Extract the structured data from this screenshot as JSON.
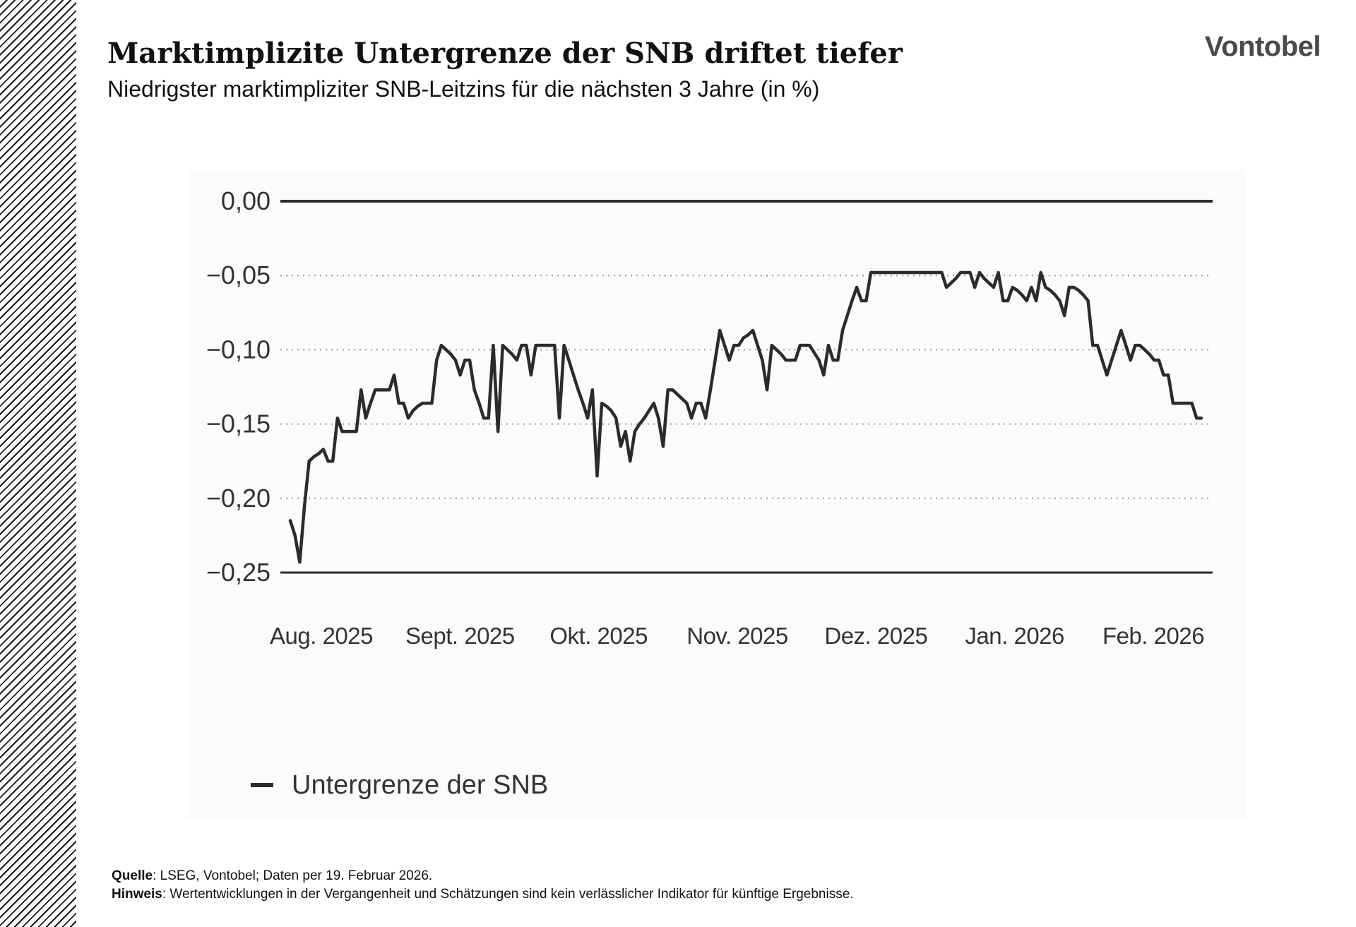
{
  "header": {
    "title": "Marktimplizite Untergrenze der SNB driftet tiefer",
    "subtitle": "Niedrigster marktimpliziter SNB-Leitzins für die nächsten 3 Jahre (in %)",
    "logo": "Vontobel"
  },
  "footer": {
    "source_label": "Quelle",
    "source_text": ": LSEG, Vontobel; Daten per 19. Februar 2026.",
    "note_label": "Hinweis",
    "note_text": ": Wertentwicklungen in der Vergangenheit und Schätzungen sind kein verlässlicher Indikator für künftige Ergebnisse."
  },
  "colors": {
    "line": "#2b2b2b",
    "axis": "#2b2b2b",
    "grid": "#9a9a9a",
    "hatch": "#1a1a1a"
  },
  "chart_data": {
    "type": "line",
    "xlabel": "",
    "ylabel": "",
    "ylim": [
      -0.25,
      0.0
    ],
    "yticks": [
      0.0,
      -0.05,
      -0.1,
      -0.15,
      -0.2,
      -0.25
    ],
    "ytick_labels": [
      "0,00",
      "−0,05",
      "−0,10",
      "−0,15",
      "−0,20",
      "−0,25"
    ],
    "xtick_labels": [
      "Aug. 2025",
      "Sept. 2025",
      "Okt. 2025",
      "Nov. 2025",
      "Dez. 2025",
      "Jan. 2026",
      "Feb. 2026"
    ],
    "grid": "dotted horizontal at -0.05, -0.10, -0.15, -0.20",
    "legend_position": "bottom-left",
    "series": [
      {
        "name": "Untergrenze der SNB",
        "values": [
          -0.215,
          -0.225,
          -0.243,
          -0.205,
          -0.175,
          -0.172,
          -0.17,
          -0.167,
          -0.175,
          -0.175,
          -0.146,
          -0.155,
          -0.155,
          -0.155,
          -0.155,
          -0.127,
          -0.146,
          -0.136,
          -0.127,
          -0.127,
          -0.127,
          -0.127,
          -0.117,
          -0.136,
          -0.136,
          -0.146,
          -0.141,
          -0.138,
          -0.136,
          -0.136,
          -0.136,
          -0.107,
          -0.097,
          -0.1,
          -0.103,
          -0.107,
          -0.117,
          -0.107,
          -0.107,
          -0.127,
          -0.136,
          -0.146,
          -0.146,
          -0.097,
          -0.155,
          -0.097,
          -0.1,
          -0.103,
          -0.107,
          -0.097,
          -0.097,
          -0.117,
          -0.097,
          -0.097,
          -0.097,
          -0.097,
          -0.097,
          -0.146,
          -0.097,
          -0.107,
          -0.117,
          -0.127,
          -0.136,
          -0.146,
          -0.127,
          -0.185,
          -0.136,
          -0.138,
          -0.141,
          -0.146,
          -0.165,
          -0.155,
          -0.175,
          -0.155,
          -0.15,
          -0.146,
          -0.141,
          -0.136,
          -0.146,
          -0.165,
          -0.127,
          -0.127,
          -0.13,
          -0.133,
          -0.136,
          -0.146,
          -0.136,
          -0.136,
          -0.146,
          -0.127,
          -0.107,
          -0.087,
          -0.097,
          -0.107,
          -0.097,
          -0.097,
          -0.092,
          -0.09,
          -0.087,
          -0.097,
          -0.107,
          -0.127,
          -0.097,
          -0.1,
          -0.103,
          -0.107,
          -0.107,
          -0.107,
          -0.097,
          -0.097,
          -0.097,
          -0.102,
          -0.107,
          -0.117,
          -0.097,
          -0.107,
          -0.107,
          -0.087,
          -0.077,
          -0.067,
          -0.058,
          -0.067,
          -0.067,
          -0.048,
          -0.048,
          -0.048,
          -0.048,
          -0.048,
          -0.048,
          -0.048,
          -0.048,
          -0.048,
          -0.048,
          -0.048,
          -0.048,
          -0.048,
          -0.048,
          -0.048,
          -0.048,
          -0.058,
          -0.055,
          -0.052,
          -0.048,
          -0.048,
          -0.048,
          -0.058,
          -0.048,
          -0.052,
          -0.055,
          -0.058,
          -0.048,
          -0.067,
          -0.067,
          -0.058,
          -0.06,
          -0.063,
          -0.067,
          -0.058,
          -0.067,
          -0.048,
          -0.058,
          -0.06,
          -0.063,
          -0.067,
          -0.077,
          -0.058,
          -0.058,
          -0.06,
          -0.063,
          -0.067,
          -0.097,
          -0.097,
          -0.107,
          -0.117,
          -0.107,
          -0.097,
          -0.087,
          -0.097,
          -0.107,
          -0.097,
          -0.097,
          -0.1,
          -0.103,
          -0.107,
          -0.107,
          -0.117,
          -0.117,
          -0.136,
          -0.136,
          -0.136,
          -0.136,
          -0.136,
          -0.146,
          -0.146
        ]
      }
    ]
  }
}
